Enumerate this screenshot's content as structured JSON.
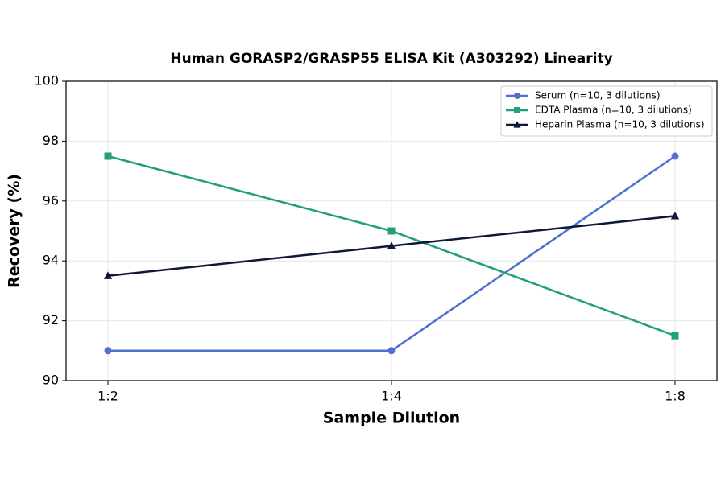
{
  "chart_data": {
    "type": "line",
    "title": "Human GORASP2/GRASP55 ELISA Kit (A303292) Linearity",
    "x_label": "Sample Dilution",
    "y_label": "Recovery (%)",
    "categories": [
      "1:2",
      "1:4",
      "1:8"
    ],
    "series": [
      {
        "name": "Serum (n=10, 3 dilutions)",
        "color": "#5070cf",
        "marker": "circle",
        "values": [
          91,
          91,
          97.5
        ]
      },
      {
        "name": "EDTA Plasma (n=10, 3 dilutions)",
        "color": "#23a079",
        "marker": "square",
        "values": [
          97.5,
          95,
          91.5
        ]
      },
      {
        "name": "Heparin Plasma (n=10, 3 dilutions)",
        "color": "#0e1838",
        "marker": "triangle",
        "values": [
          93.5,
          94.5,
          95.5
        ]
      }
    ],
    "ylim": [
      90,
      100
    ],
    "yticks": [
      90,
      92,
      94,
      96,
      98,
      100
    ],
    "grid": true,
    "legend": "upper right"
  }
}
